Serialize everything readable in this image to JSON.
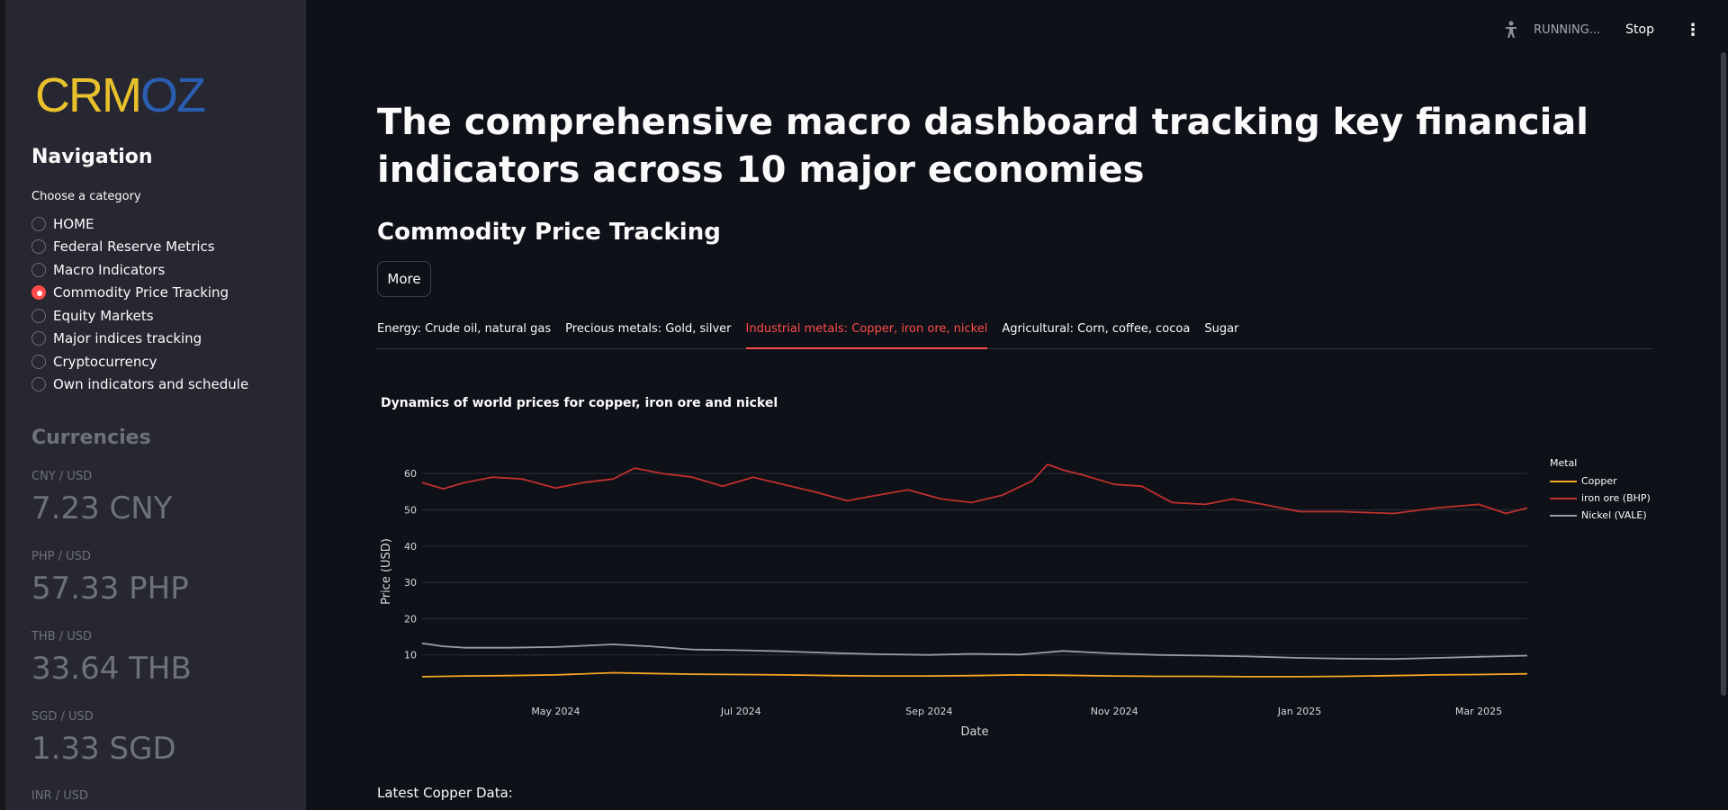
{
  "sidebar": {
    "logo_part1": "CRM",
    "logo_part2": "OZ",
    "nav_title": "Navigation",
    "choose_label": "Choose a category",
    "items": [
      {
        "label": "HOME",
        "selected": false
      },
      {
        "label": "Federal Reserve Metrics",
        "selected": false
      },
      {
        "label": "Macro Indicators",
        "selected": false
      },
      {
        "label": "Commodity Price Tracking",
        "selected": true
      },
      {
        "label": "Equity Markets",
        "selected": false
      },
      {
        "label": "Major indices tracking",
        "selected": false
      },
      {
        "label": "Cryptocurrency",
        "selected": false
      },
      {
        "label": "Own indicators and schedule",
        "selected": false
      }
    ],
    "currencies_title": "Currencies",
    "currencies": [
      {
        "label": "CNY / USD",
        "value": "7.23 CNY"
      },
      {
        "label": "PHP / USD",
        "value": "57.33 PHP"
      },
      {
        "label": "THB / USD",
        "value": "33.64 THB"
      },
      {
        "label": "SGD / USD",
        "value": "1.33 SGD"
      },
      {
        "label": "INR / USD",
        "value": ""
      }
    ]
  },
  "topbar": {
    "status": "RUNNING...",
    "stop_label": "Stop",
    "menu_icon": "kebab-menu-icon",
    "status_icon": "running-person-icon"
  },
  "main": {
    "headline": "The comprehensive macro dashboard tracking key financial indicators across 10 major economies",
    "subheading": "Commodity Price Tracking",
    "more_button": "More",
    "tabs": [
      {
        "label": "Energy: Crude oil, natural gas",
        "active": false
      },
      {
        "label": "Precious metals: Gold, silver",
        "active": false
      },
      {
        "label": "Industrial metals: Copper, iron ore, nickel",
        "active": true
      },
      {
        "label": "Agricultural: Corn, coffee, cocoa",
        "active": false
      },
      {
        "label": "Sugar",
        "active": false
      }
    ],
    "latest_label": "Latest Copper Data:"
  },
  "colors": {
    "accent": "#ff4b4b",
    "copper": "#f5a623",
    "iron_ore": "#c0302e",
    "nickel": "#9a9da5"
  },
  "chart_data": {
    "type": "line",
    "title": "Dynamics of world prices for copper, iron ore and nickel",
    "xlabel": "Date",
    "ylabel": "Price (USD)",
    "ylim": [
      2,
      64
    ],
    "xlim": [
      "2024-03-18",
      "2025-03-17"
    ],
    "yticks": [
      10,
      20,
      30,
      40,
      50,
      60
    ],
    "xticks": [
      {
        "date": "2024-05-01",
        "label": "May 2024"
      },
      {
        "date": "2024-07-01",
        "label": "Jul 2024"
      },
      {
        "date": "2024-09-01",
        "label": "Sep 2024"
      },
      {
        "date": "2024-11-01",
        "label": "Nov 2024"
      },
      {
        "date": "2025-01-01",
        "label": "Jan 2025"
      },
      {
        "date": "2025-03-01",
        "label": "Mar 2025"
      }
    ],
    "grid": true,
    "legend_title": "Metal",
    "legend_position": "right",
    "series": [
      {
        "name": "Copper",
        "color": "#f5a623",
        "x": [
          "2024-03-18",
          "2024-04-01",
          "2024-04-15",
          "2024-05-01",
          "2024-05-20",
          "2024-06-01",
          "2024-06-15",
          "2024-07-01",
          "2024-07-15",
          "2024-08-01",
          "2024-08-15",
          "2024-09-01",
          "2024-09-15",
          "2024-10-01",
          "2024-10-15",
          "2024-11-01",
          "2024-11-15",
          "2024-12-01",
          "2024-12-15",
          "2025-01-01",
          "2025-01-15",
          "2025-02-01",
          "2025-02-15",
          "2025-03-01",
          "2025-03-17"
        ],
        "values": [
          4.0,
          4.2,
          4.3,
          4.5,
          5.1,
          4.9,
          4.7,
          4.6,
          4.5,
          4.3,
          4.2,
          4.2,
          4.3,
          4.5,
          4.4,
          4.2,
          4.1,
          4.1,
          4.0,
          4.0,
          4.1,
          4.3,
          4.5,
          4.6,
          4.8
        ]
      },
      {
        "name": "iron ore (BHP)",
        "color": "#c0302e",
        "x": [
          "2024-03-18",
          "2024-03-25",
          "2024-04-01",
          "2024-04-10",
          "2024-04-20",
          "2024-05-01",
          "2024-05-10",
          "2024-05-20",
          "2024-05-27",
          "2024-06-05",
          "2024-06-15",
          "2024-06-25",
          "2024-07-05",
          "2024-07-15",
          "2024-07-25",
          "2024-08-05",
          "2024-08-15",
          "2024-08-25",
          "2024-09-05",
          "2024-09-15",
          "2024-09-25",
          "2024-10-05",
          "2024-10-10",
          "2024-10-15",
          "2024-10-22",
          "2024-11-01",
          "2024-11-10",
          "2024-11-20",
          "2024-12-01",
          "2024-12-10",
          "2024-12-20",
          "2025-01-01",
          "2025-01-15",
          "2025-02-01",
          "2025-02-15",
          "2025-03-01",
          "2025-03-10",
          "2025-03-17"
        ],
        "values": [
          57.5,
          55.8,
          57.5,
          59.0,
          58.5,
          56.0,
          57.5,
          58.5,
          61.5,
          60.0,
          59.0,
          56.5,
          59.0,
          57.0,
          55.0,
          52.5,
          54.0,
          55.5,
          53.0,
          52.0,
          54.0,
          58.0,
          62.5,
          61.0,
          59.5,
          57.0,
          56.5,
          52.0,
          51.5,
          53.0,
          51.5,
          49.5,
          49.5,
          49.0,
          50.5,
          51.5,
          49.0,
          50.5
        ]
      },
      {
        "name": "Nickel (VALE)",
        "color": "#9a9da5",
        "x": [
          "2024-03-18",
          "2024-03-25",
          "2024-04-01",
          "2024-04-15",
          "2024-05-01",
          "2024-05-20",
          "2024-06-01",
          "2024-06-15",
          "2024-07-01",
          "2024-07-15",
          "2024-08-01",
          "2024-08-15",
          "2024-09-01",
          "2024-09-15",
          "2024-10-01",
          "2024-10-15",
          "2024-11-01",
          "2024-11-15",
          "2024-12-01",
          "2024-12-15",
          "2025-01-01",
          "2025-01-15",
          "2025-02-01",
          "2025-02-15",
          "2025-03-01",
          "2025-03-17"
        ],
        "values": [
          13.2,
          12.4,
          12.0,
          12.0,
          12.2,
          12.9,
          12.4,
          11.5,
          11.3,
          11.0,
          10.5,
          10.2,
          10.0,
          10.3,
          10.1,
          11.1,
          10.4,
          10.0,
          9.8,
          9.6,
          9.2,
          9.0,
          8.9,
          9.2,
          9.5,
          9.8
        ]
      }
    ]
  }
}
